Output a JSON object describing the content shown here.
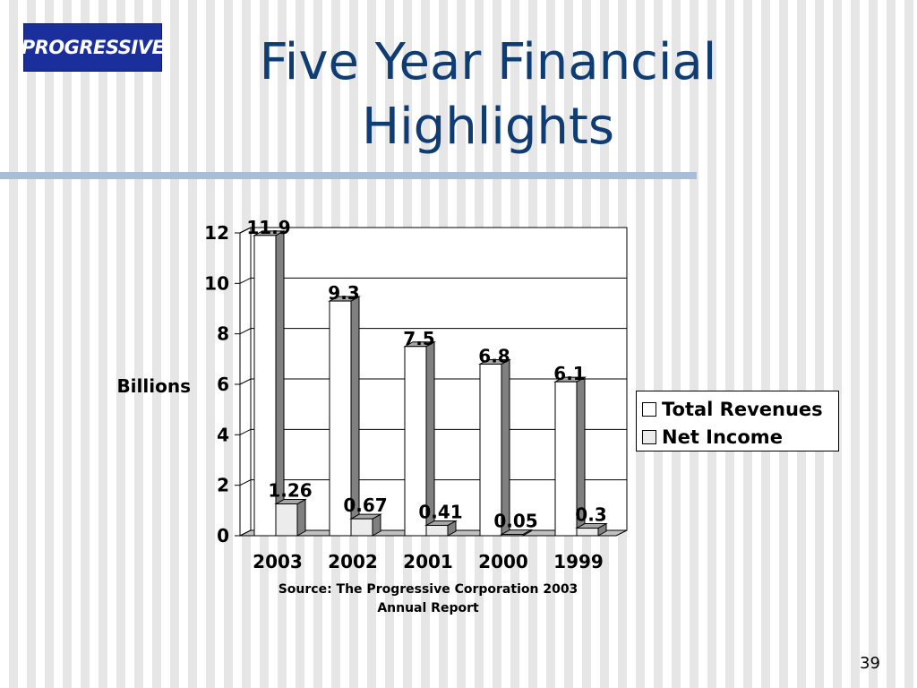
{
  "logo": {
    "text": "PROGRESSIVE"
  },
  "slide": {
    "title_line1": "Five Year Financial",
    "title_line2": "Highlights",
    "page_number": "39",
    "source_line1": "Source:  The Progressive Corporation 2003",
    "source_line2": "Annual Report"
  },
  "chart_data": {
    "type": "bar",
    "categories": [
      "2003",
      "2002",
      "2001",
      "2000",
      "1999"
    ],
    "series": [
      {
        "name": "Total Revenues",
        "values": [
          11.9,
          9.3,
          7.5,
          6.8,
          6.1
        ],
        "labels": [
          "11.9",
          "9.3",
          "7.5",
          "6.8",
          "6.1"
        ],
        "color": "#ffffff"
      },
      {
        "name": "Net Income",
        "values": [
          1.26,
          0.67,
          0.41,
          0.05,
          0.3
        ],
        "labels": [
          "1.26",
          "0.67",
          "0.41",
          "0.05",
          "0.3"
        ],
        "color": "#ececec"
      }
    ],
    "ylabel": "Billions",
    "ylim": [
      0,
      12
    ],
    "yticks": [
      "0",
      "2",
      "4",
      "6",
      "8",
      "10",
      "12"
    ],
    "grid": true,
    "legend_position": "right",
    "style": "3d"
  }
}
